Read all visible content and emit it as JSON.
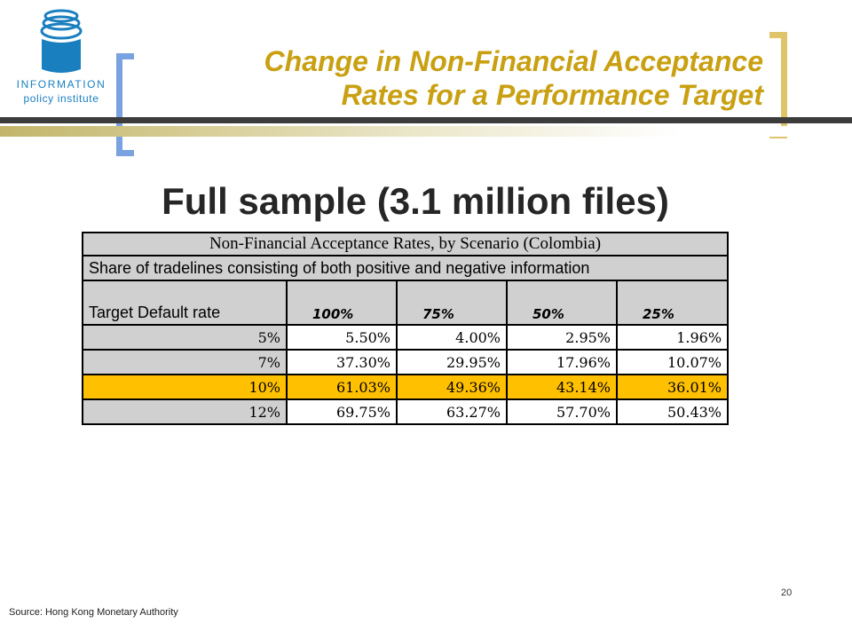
{
  "header": {
    "logo_line1": "INFORMATION",
    "logo_line2": "policy institute",
    "title_line1": "Change in Non-Financial Acceptance",
    "title_line2": "Rates for a Performance Target",
    "subtitle": "Full sample (3.1 million files)"
  },
  "table": {
    "title": "Non-Financial Acceptance Rates, by Scenario (Colombia)",
    "share_label": "Share of tradelines consisting of both positive and negative information",
    "target_label": "Target Default rate",
    "columns": [
      "100%",
      "75%",
      "50%",
      "25%"
    ],
    "rows": [
      {
        "rate": "5%",
        "values": [
          "5.50%",
          "4.00%",
          "2.95%",
          "1.96%"
        ],
        "highlight": false
      },
      {
        "rate": "7%",
        "values": [
          "37.30%",
          "29.95%",
          "17.96%",
          "10.07%"
        ],
        "highlight": false
      },
      {
        "rate": "10%",
        "values": [
          "61.03%",
          "49.36%",
          "43.14%",
          "36.01%"
        ],
        "highlight": true
      },
      {
        "rate": "12%",
        "values": [
          "69.75%",
          "63.27%",
          "57.70%",
          "50.43%"
        ],
        "highlight": false
      }
    ]
  },
  "footer": {
    "page_number": "20",
    "source": "Source: Hong Kong Monetary Authority"
  },
  "colors": {
    "title": "#c9a012",
    "highlight_row": "#ffc000",
    "left_bracket": "#7aa2e0",
    "right_bracket": "#e0c46a",
    "logo": "#1a7fbf"
  }
}
